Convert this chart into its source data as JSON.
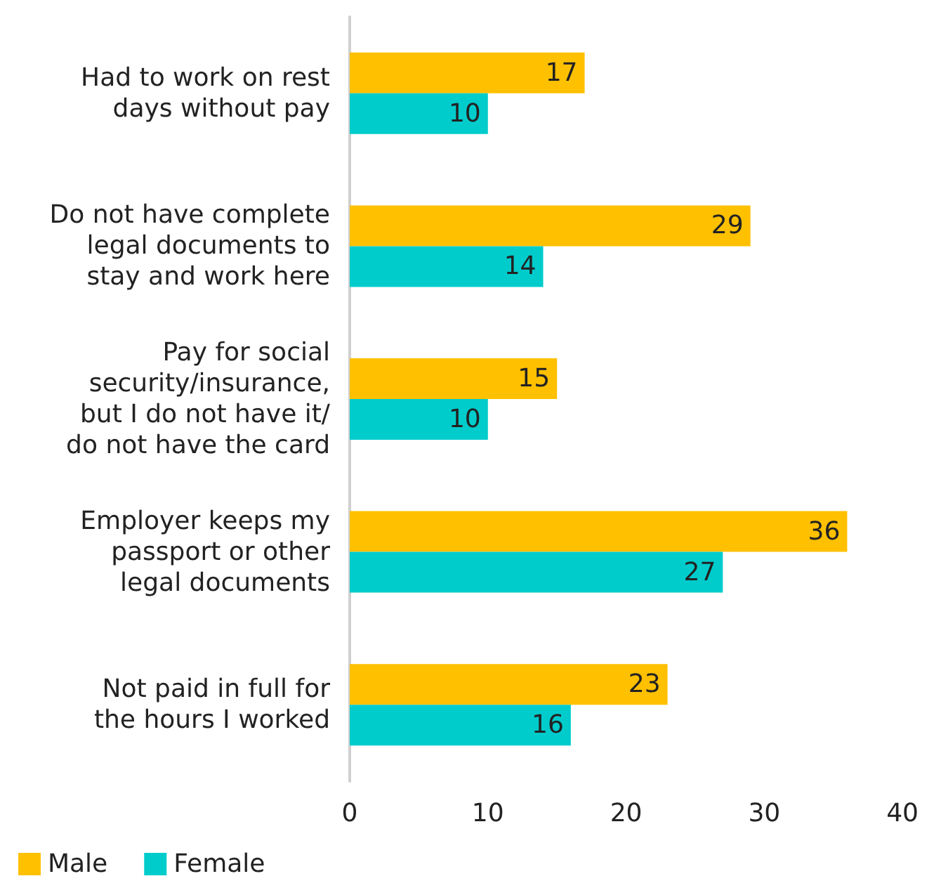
{
  "chart_data": {
    "type": "bar",
    "orientation": "horizontal",
    "categories": [
      "Had to work on rest\ndays without pay",
      "Do not have complete\nlegal documents to\nstay and work here",
      "Pay for social\nsecurity/insurance,\nbut I do not have it/\ndo not have the card",
      "Employer keeps my\npassport or other\nlegal documents",
      "Not paid in full for\nthe hours I worked"
    ],
    "series": [
      {
        "name": "Male",
        "color": "#ffc000",
        "values": [
          17,
          29,
          15,
          36,
          23
        ]
      },
      {
        "name": "Female",
        "color": "#00cccc",
        "values": [
          10,
          14,
          10,
          27,
          16
        ]
      }
    ],
    "xlim": [
      0,
      40
    ],
    "xticks": [
      0,
      10,
      20,
      30,
      40
    ],
    "data_labels": true,
    "grid": false,
    "legend": "bottom left"
  }
}
